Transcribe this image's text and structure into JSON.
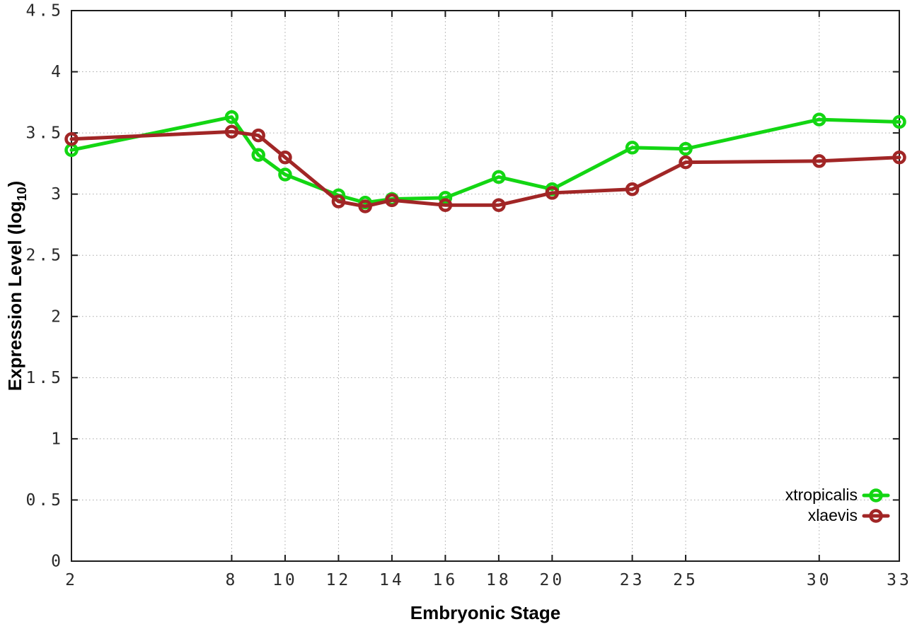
{
  "chart_data": {
    "type": "line",
    "title": "",
    "xlabel": "Embryonic Stage",
    "ylabel": "Expression Level (log10)",
    "ylabel_parts": {
      "main": "Expression Level (log",
      "sub": "10",
      "close": ")"
    },
    "xlim": [
      2,
      33
    ],
    "ylim": [
      0,
      4.5
    ],
    "grid": true,
    "legend_position": "inside bottom right",
    "x": [
      2,
      8,
      9,
      10,
      12,
      13,
      14,
      16,
      18,
      20,
      23,
      25,
      30,
      33
    ],
    "xticks": [
      2,
      8,
      10,
      12,
      14,
      16,
      18,
      20,
      23,
      25,
      30,
      33
    ],
    "xtick_labels": [
      "2",
      "8",
      "10",
      "12",
      "14",
      "16",
      "18",
      "20",
      "23",
      "25",
      "30",
      "33"
    ],
    "yticks": [
      0,
      0.5,
      1,
      1.5,
      2,
      2.5,
      3,
      3.5,
      4,
      4.5
    ],
    "ytick_labels": [
      "0",
      "0.5",
      "1",
      "1.5",
      "2",
      "2.5",
      "3",
      "3.5",
      "4",
      "4.5"
    ],
    "series": [
      {
        "name": "xtropicalis",
        "color": "#13d613",
        "values": [
          3.36,
          3.63,
          3.32,
          3.16,
          2.99,
          2.93,
          2.96,
          2.97,
          3.14,
          3.04,
          3.38,
          3.37,
          3.61,
          3.59
        ]
      },
      {
        "name": "xlaevis",
        "color": "#a12626",
        "values": [
          3.45,
          3.51,
          3.48,
          3.3,
          2.94,
          2.9,
          2.95,
          2.91,
          2.91,
          3.01,
          3.04,
          3.26,
          3.27,
          3.3
        ]
      }
    ]
  },
  "style": {
    "grid_color": "#a8a8a8",
    "axis_color": "#1c1c1c",
    "background": "#ffffff"
  }
}
